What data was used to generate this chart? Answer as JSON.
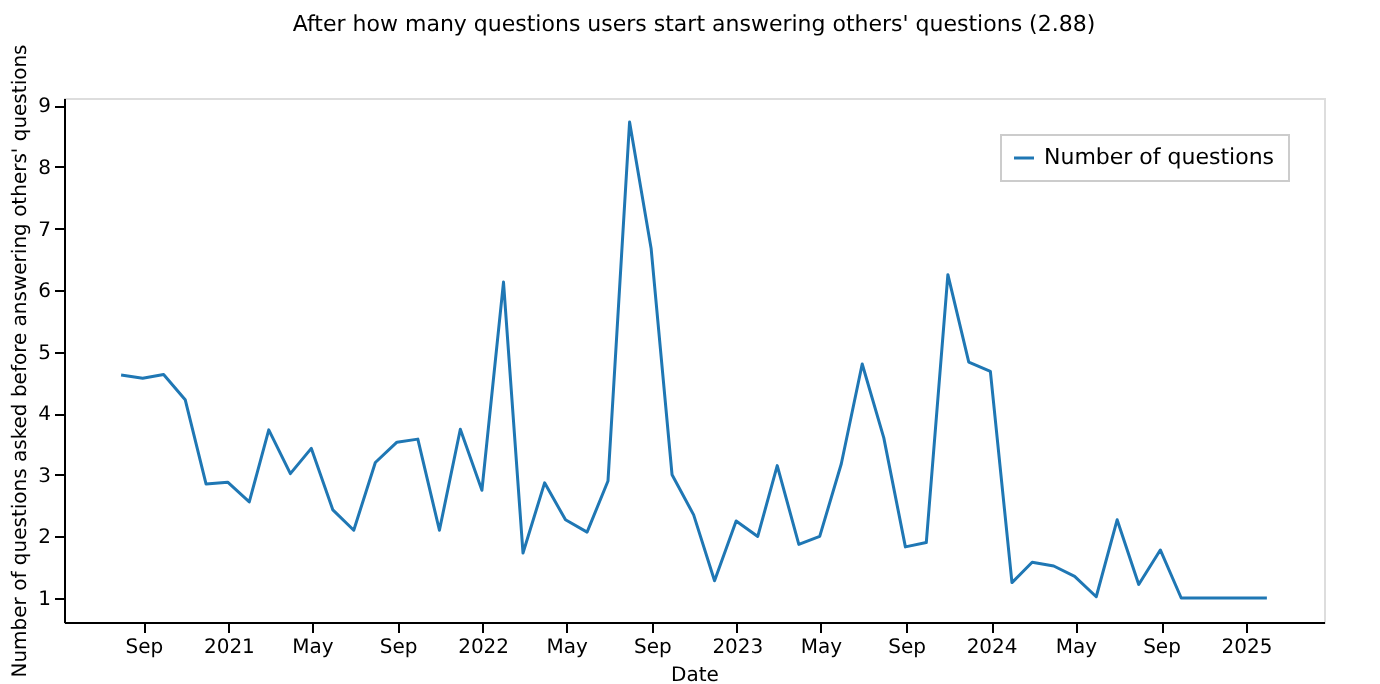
{
  "chart_data": {
    "type": "line",
    "title": "After how many questions users start answering others' questions (2.88)",
    "xlabel": "Date",
    "ylabel": "Number of questions asked before answering others' questions",
    "x": [
      "2020-07-31",
      "2020-08-31",
      "2020-09-30",
      "2020-10-31",
      "2020-11-30",
      "2020-12-31",
      "2021-01-31",
      "2021-02-28",
      "2021-03-31",
      "2021-04-30",
      "2021-05-31",
      "2021-06-30",
      "2021-07-31",
      "2021-08-31",
      "2021-09-30",
      "2021-10-31",
      "2021-11-30",
      "2021-12-31",
      "2022-01-31",
      "2022-02-28",
      "2022-03-31",
      "2022-04-30",
      "2022-05-31",
      "2022-06-30",
      "2022-07-31",
      "2022-08-31",
      "2022-09-30",
      "2022-10-31",
      "2022-11-30",
      "2022-12-31",
      "2023-01-31",
      "2023-02-28",
      "2023-03-31",
      "2023-04-30",
      "2023-05-31",
      "2023-06-30",
      "2023-07-31",
      "2023-08-31",
      "2023-09-30",
      "2023-10-31",
      "2023-11-30",
      "2023-12-31",
      "2024-01-31",
      "2024-02-29",
      "2024-03-31",
      "2024-04-30",
      "2024-05-31",
      "2024-06-30",
      "2024-07-31",
      "2024-08-31",
      "2024-09-30",
      "2024-10-31",
      "2024-11-30",
      "2024-12-31",
      "2025-01-31"
    ],
    "series": [
      {
        "name": "Number of questions",
        "color": "#1f77b4",
        "values": [
          4.62,
          4.57,
          4.63,
          4.22,
          2.85,
          2.88,
          2.56,
          3.73,
          3.02,
          3.43,
          2.43,
          2.1,
          3.2,
          3.53,
          3.58,
          2.1,
          3.74,
          2.75,
          6.13,
          1.73,
          2.87,
          2.27,
          2.07,
          2.9,
          8.73,
          6.67,
          3.0,
          2.35,
          1.28,
          2.25,
          2.0,
          3.15,
          1.87,
          2.0,
          3.18,
          4.8,
          3.6,
          1.83,
          1.9,
          6.25,
          4.83,
          4.68,
          1.25,
          1.58,
          1.52,
          1.35,
          1.02,
          2.27,
          1.22,
          1.78,
          1.0,
          1.0,
          1.0,
          1.0,
          1.0
        ]
      }
    ],
    "xlim": [
      "2020-05-10",
      "2025-04-23"
    ],
    "xticks": [
      {
        "value": "2020-09-01",
        "label": "Sep"
      },
      {
        "value": "2021-01-01",
        "label": "2021"
      },
      {
        "value": "2021-05-01",
        "label": "May"
      },
      {
        "value": "2021-09-01",
        "label": "Sep"
      },
      {
        "value": "2022-01-01",
        "label": "2022"
      },
      {
        "value": "2022-05-01",
        "label": "May"
      },
      {
        "value": "2022-09-01",
        "label": "Sep"
      },
      {
        "value": "2023-01-01",
        "label": "2023"
      },
      {
        "value": "2023-05-01",
        "label": "May"
      },
      {
        "value": "2023-09-01",
        "label": "Sep"
      },
      {
        "value": "2024-01-01",
        "label": "2024"
      },
      {
        "value": "2024-05-01",
        "label": "May"
      },
      {
        "value": "2024-09-01",
        "label": "Sep"
      },
      {
        "value": "2025-01-01",
        "label": "2025"
      }
    ],
    "ylim": [
      0.61,
      9.12
    ],
    "yticks": [
      1,
      2,
      3,
      4,
      5,
      6,
      7,
      8,
      9
    ],
    "grid": false,
    "legend": "top right",
    "marker": "none",
    "line_style": "solid"
  }
}
